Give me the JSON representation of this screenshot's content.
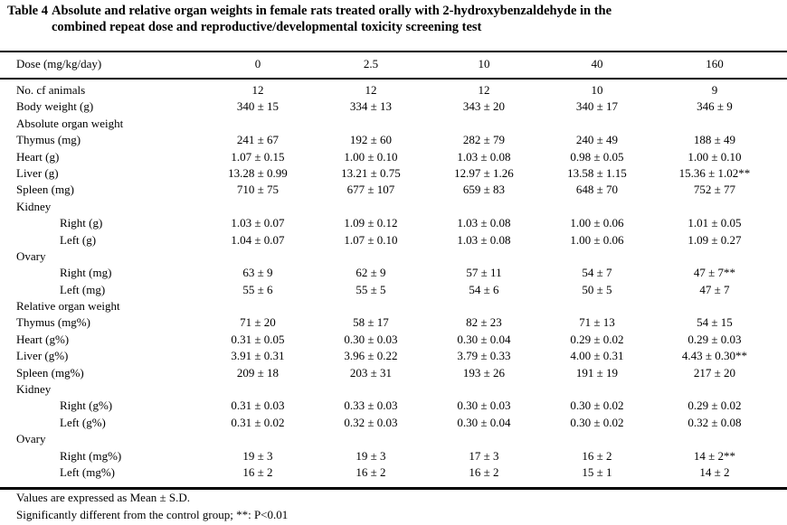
{
  "title": {
    "label": "Table 4",
    "line1": "Absolute and relative organ weights in female rats treated orally with 2-hydroxybenzaldehyde in the",
    "line2": "combined repeat dose and reproductive/developmental toxicity screening test"
  },
  "header": {
    "label": "Dose (mg/kg/day)",
    "doses": [
      "0",
      "2.5",
      "10",
      "40",
      "160"
    ]
  },
  "rows": [
    {
      "label": "No. cf animals",
      "indent": false,
      "values": [
        "12",
        "12",
        "12",
        "10",
        "9"
      ]
    },
    {
      "label": "Body weight (g)",
      "indent": false,
      "values": [
        "340 ± 15",
        "334 ± 13",
        "343 ± 20",
        "340 ± 17",
        "346 ± 9"
      ]
    },
    {
      "label": "Absolute organ weight",
      "indent": false,
      "values": []
    },
    {
      "label": "Thymus (mg)",
      "indent": false,
      "values": [
        "241 ± 67",
        "192 ± 60",
        "282 ± 79",
        "240 ± 49",
        "188 ± 49"
      ]
    },
    {
      "label": "Heart (g)",
      "indent": false,
      "values": [
        "1.07 ± 0.15",
        "1.00 ± 0.10",
        "1.03 ± 0.08",
        "0.98 ± 0.05",
        "1.00 ± 0.10"
      ]
    },
    {
      "label": "Liver (g)",
      "indent": false,
      "values": [
        "13.28 ± 0.99",
        "13.21 ± 0.75",
        "12.97 ± 1.26",
        "13.58 ± 1.15",
        "15.36 ± 1.02**"
      ]
    },
    {
      "label": "Spleen (mg)",
      "indent": false,
      "values": [
        "710 ± 75",
        "677 ± 107",
        "659 ± 83",
        "648 ± 70",
        "752 ± 77"
      ]
    },
    {
      "label": "Kidney",
      "indent": false,
      "values": []
    },
    {
      "label": "Right (g)",
      "indent": true,
      "values": [
        "1.03 ± 0.07",
        "1.09 ± 0.12",
        "1.03 ± 0.08",
        "1.00 ± 0.06",
        "1.01 ± 0.05"
      ]
    },
    {
      "label": "Left (g)",
      "indent": true,
      "values": [
        "1.04 ± 0.07",
        "1.07 ± 0.10",
        "1.03 ± 0.08",
        "1.00 ± 0.06",
        "1.09 ± 0.27"
      ]
    },
    {
      "label": "Ovary",
      "indent": false,
      "values": []
    },
    {
      "label": "Right (mg)",
      "indent": true,
      "values": [
        "63 ± 9",
        "62 ± 9",
        "57 ± 11",
        "54 ± 7",
        "47 ± 7**"
      ]
    },
    {
      "label": "Left (mg)",
      "indent": true,
      "values": [
        "55 ± 6",
        "55 ± 5",
        "54 ± 6",
        "50 ± 5",
        "47 ± 7"
      ]
    },
    {
      "label": "Relative organ weight",
      "indent": false,
      "values": []
    },
    {
      "label": "Thymus (mg%)",
      "indent": false,
      "values": [
        "71 ± 20",
        "58 ± 17",
        "82 ± 23",
        "71 ± 13",
        "54 ± 15"
      ]
    },
    {
      "label": "Heart (g%)",
      "indent": false,
      "values": [
        "0.31 ± 0.05",
        "0.30 ± 0.03",
        "0.30 ± 0.04",
        "0.29 ± 0.02",
        "0.29 ± 0.03"
      ]
    },
    {
      "label": "Liver (g%)",
      "indent": false,
      "values": [
        "3.91 ± 0.31",
        "3.96 ± 0.22",
        "3.79 ± 0.33",
        "4.00 ± 0.31",
        "4.43 ± 0.30**"
      ]
    },
    {
      "label": "Spleen (mg%)",
      "indent": false,
      "values": [
        "209 ± 18",
        "203 ± 31",
        "193 ± 26",
        "191 ± 19",
        "217 ± 20"
      ]
    },
    {
      "label": "Kidney",
      "indent": false,
      "values": []
    },
    {
      "label": "Right (g%)",
      "indent": true,
      "values": [
        "0.31 ± 0.03",
        "0.33 ± 0.03",
        "0.30 ± 0.03",
        "0.30 ± 0.02",
        "0.29 ± 0.02"
      ]
    },
    {
      "label": "Left (g%)",
      "indent": true,
      "values": [
        "0.31 ± 0.02",
        "0.32 ± 0.03",
        "0.30 ± 0.04",
        "0.30 ± 0.02",
        "0.32 ± 0.08"
      ]
    },
    {
      "label": "Ovary",
      "indent": false,
      "values": []
    },
    {
      "label": "Right (mg%)",
      "indent": true,
      "values": [
        "19 ± 3",
        "19 ± 3",
        "17 ± 3",
        "16 ± 2",
        "14 ± 2**"
      ]
    },
    {
      "label": "Left (mg%)",
      "indent": true,
      "values": [
        "16 ± 2",
        "16 ± 2",
        "16 ± 2",
        "15 ± 1",
        "14 ± 2"
      ]
    }
  ],
  "footnotes": [
    "Values are expressed as Mean ± S.D.",
    "Significantly different from the control group;  **: P<0.01"
  ]
}
